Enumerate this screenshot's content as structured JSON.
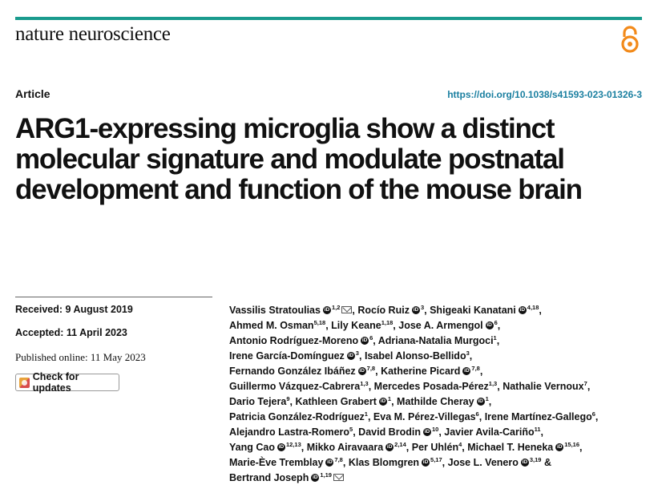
{
  "header": {
    "journal": "nature neuroscience",
    "open_access_icon": "open-access-lock-icon",
    "brand_color": "#1a9b8e"
  },
  "article": {
    "type": "Article",
    "doi": "https://doi.org/10.1038/s41593-023-01326-3",
    "title": "ARG1-expressing microglia show a distinct molecular signature and modulate postnatal development and function of the mouse brain"
  },
  "meta": {
    "received": "Received: 9 August 2019",
    "accepted": "Accepted: 11 April 2023",
    "published": "Published online: 11 May 2023",
    "check_updates": "Check for updates"
  },
  "author_lines": [
    [
      {
        "name": "Vassilis Stratoulias",
        "orcid": true,
        "aff": "1,2",
        "mail": true,
        "sep": ","
      },
      {
        "name": "Rocío Ruiz",
        "orcid": true,
        "aff": "3",
        "sep": ","
      },
      {
        "name": "Shigeaki Kanatani",
        "orcid": true,
        "aff": "4,18",
        "sep": ","
      }
    ],
    [
      {
        "name": "Ahmed M. Osman",
        "aff": "5,18",
        "sep": ","
      },
      {
        "name": "Lily Keane",
        "aff": "1,18",
        "sep": ","
      },
      {
        "name": "Jose A. Armengol",
        "orcid": true,
        "aff": "6",
        "sep": ","
      }
    ],
    [
      {
        "name": "Antonio Rodríguez-Moreno",
        "orcid": true,
        "aff": "6",
        "sep": ","
      },
      {
        "name": "Adriana-Natalia Murgoci",
        "aff": "1",
        "sep": ","
      }
    ],
    [
      {
        "name": "Irene García-Domínguez",
        "orcid": true,
        "aff": "3",
        "sep": ","
      },
      {
        "name": "Isabel Alonso-Bellido",
        "aff": "3",
        "sep": ","
      }
    ],
    [
      {
        "name": "Fernando González Ibáñez",
        "orcid": true,
        "aff": "7,8",
        "sep": ","
      },
      {
        "name": "Katherine Picard",
        "orcid": true,
        "aff": "7,8",
        "sep": ","
      }
    ],
    [
      {
        "name": "Guillermo Vázquez-Cabrera",
        "aff": "1,3",
        "sep": ","
      },
      {
        "name": "Mercedes Posada-Pérez",
        "aff": "1,3",
        "sep": ","
      },
      {
        "name": "Nathalie Vernoux",
        "aff": "7",
        "sep": ","
      }
    ],
    [
      {
        "name": "Dario Tejera",
        "aff": "9",
        "sep": ","
      },
      {
        "name": "Kathleen Grabert",
        "orcid": true,
        "aff": "1",
        "sep": ","
      },
      {
        "name": "Mathilde Cheray",
        "orcid": true,
        "aff": "1",
        "sep": ","
      }
    ],
    [
      {
        "name": "Patricia González-Rodríguez",
        "aff": "1",
        "sep": ","
      },
      {
        "name": "Eva M. Pérez-Villegas",
        "aff": "6",
        "sep": ","
      },
      {
        "name": "Irene Martínez-Gallego",
        "aff": "6",
        "sep": ","
      }
    ],
    [
      {
        "name": "Alejandro Lastra-Romero",
        "aff": "5",
        "sep": ","
      },
      {
        "name": "David Brodin",
        "orcid": true,
        "aff": "10",
        "sep": ","
      },
      {
        "name": "Javier Avila-Cariño",
        "aff": "11",
        "sep": ","
      }
    ],
    [
      {
        "name": "Yang Cao",
        "orcid": true,
        "aff": "12,13",
        "sep": ","
      },
      {
        "name": "Mikko Airavaara",
        "orcid": true,
        "aff": "2,14",
        "sep": ","
      },
      {
        "name": "Per Uhlén",
        "aff": "4",
        "sep": ","
      },
      {
        "name": "Michael T. Heneka",
        "orcid": true,
        "aff": "15,16",
        "sep": ","
      }
    ],
    [
      {
        "name": "Marie-Ève Tremblay",
        "orcid": true,
        "aff": "7,8",
        "sep": ","
      },
      {
        "name": "Klas Blomgren",
        "orcid": true,
        "aff": "5,17",
        "sep": ","
      },
      {
        "name": "Jose L. Venero",
        "orcid": true,
        "aff": "3,19",
        "sep": " &"
      }
    ],
    [
      {
        "name": "Bertrand Joseph",
        "orcid": true,
        "aff": "1,19",
        "mail": true,
        "sep": ""
      }
    ]
  ]
}
